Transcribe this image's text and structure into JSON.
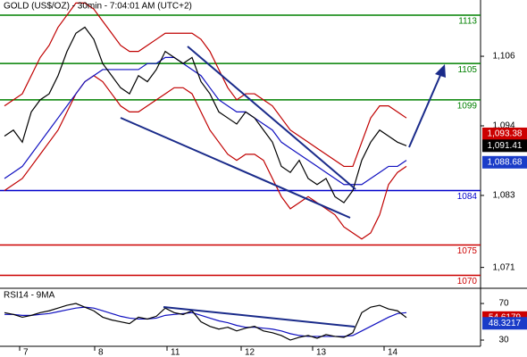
{
  "chart_data": [
    {
      "type": "line",
      "title": "GOLD (US$/OZ) - 30min - 7:04:01 AM (UTC+2)",
      "xlim": [
        -0.5,
        53.3
      ],
      "xticks": [
        {
          "value": 1.7,
          "label": "7"
        },
        {
          "value": 10.1,
          "label": "8"
        },
        {
          "value": 18.2,
          "label": "11"
        },
        {
          "value": 26.5,
          "label": "12"
        },
        {
          "value": 34.5,
          "label": "13"
        },
        {
          "value": 42.5,
          "label": "14"
        }
      ],
      "ylim": [
        1068,
        1115.5
      ],
      "yticks": [
        {
          "value": 1106.2,
          "label": "1,106"
        },
        {
          "value": 1094.7,
          "label": "1,094"
        },
        {
          "value": 1083.2,
          "label": "1,083"
        },
        {
          "value": 1071.3,
          "label": "1,071"
        }
      ],
      "series": [
        {
          "color": "#c00000",
          "values": [
            1098,
            1099,
            1100,
            1103,
            1106,
            1108,
            1111,
            1113,
            1115,
            1115,
            1114,
            1112,
            1110,
            1108,
            1107,
            1107,
            1108,
            1109,
            1110,
            1110,
            1110,
            1110,
            1109,
            1107,
            1104,
            1101,
            1099,
            1100,
            1100,
            1099,
            1098,
            1096,
            1094,
            1093,
            1092,
            1091,
            1090,
            1089,
            1088,
            1088,
            1092,
            1096,
            1098,
            1098,
            1097,
            1096
          ]
        },
        {
          "color": "#c00000",
          "values": [
            1084,
            1085,
            1086,
            1088,
            1090,
            1092,
            1094,
            1097,
            1100,
            1102,
            1103,
            1102,
            1100,
            1098,
            1097,
            1097,
            1098,
            1099,
            1100,
            1101,
            1101,
            1100,
            1097,
            1094,
            1092,
            1090,
            1089,
            1090,
            1090,
            1089,
            1086,
            1083,
            1081,
            1082,
            1083,
            1082,
            1081,
            1080,
            1078,
            1077,
            1076,
            1077,
            1080,
            1085,
            1087,
            1088
          ]
        },
        {
          "color": "#1010c0",
          "values": [
            1086,
            1087,
            1088,
            1090,
            1092,
            1094,
            1096,
            1098,
            1100,
            1102,
            1103,
            1104,
            1104,
            1104,
            1104,
            1104,
            1105,
            1105,
            1106,
            1106,
            1105,
            1104,
            1103,
            1101,
            1099,
            1098,
            1097,
            1097,
            1096,
            1095,
            1094,
            1092,
            1091,
            1090,
            1089,
            1088,
            1087,
            1086,
            1085,
            1085,
            1085,
            1086,
            1087,
            1088,
            1088,
            1089
          ]
        },
        {
          "color": "#000000",
          "values": [
            1093,
            1094,
            1092,
            1097,
            1099,
            1100,
            1103,
            1107,
            1110,
            1111,
            1109,
            1105,
            1103,
            1101,
            1100,
            1103,
            1102,
            1104,
            1107,
            1106,
            1105,
            1106,
            1102,
            1100,
            1097,
            1096,
            1095,
            1097,
            1096,
            1094,
            1092,
            1088,
            1087,
            1089,
            1086,
            1085,
            1086,
            1083,
            1082,
            1084,
            1089,
            1092,
            1094,
            1093,
            1092,
            1091.41
          ]
        }
      ],
      "levels": [
        {
          "value": 1113,
          "color": "#008000"
        },
        {
          "value": 1105,
          "color": "#008000"
        },
        {
          "value": 1099,
          "color": "#008000"
        },
        {
          "value": 1084,
          "color": "#0000cc"
        },
        {
          "value": 1075,
          "color": "#cc0000"
        },
        {
          "value": 1070,
          "color": "#cc0000"
        }
      ],
      "price_labels": [
        {
          "value": 1093.38,
          "label": "1,093.38",
          "color": "#cc0000"
        },
        {
          "value": 1091.41,
          "label": "1,091.41",
          "color": "#000000"
        },
        {
          "value": 1088.68,
          "label": "1,088.68",
          "color": "#1a3cc8"
        }
      ]
    },
    {
      "type": "line",
      "title": "RSI14 - 9MA",
      "xlim": [
        -0.5,
        53.3
      ],
      "ylim": [
        23.2,
        83.7
      ],
      "yticks": [
        70,
        30
      ],
      "series": [
        {
          "color": "#1010c0",
          "values": [
            58,
            58,
            57,
            57,
            58,
            59,
            61,
            63,
            65,
            66,
            65,
            62,
            59,
            56,
            54,
            53,
            53,
            54,
            57,
            58,
            59,
            60,
            57,
            54,
            51,
            49,
            46,
            44,
            44,
            43,
            42,
            40,
            37,
            35,
            34,
            34,
            34,
            34,
            34,
            35,
            40,
            45,
            50,
            55,
            59,
            60
          ]
        },
        {
          "color": "#000000",
          "values": [
            60,
            58,
            55,
            57,
            60,
            62,
            65,
            68,
            70,
            66,
            62,
            55,
            52,
            50,
            48,
            55,
            53,
            56,
            65,
            60,
            58,
            62,
            50,
            45,
            42,
            44,
            40,
            43,
            45,
            40,
            38,
            35,
            30,
            33,
            35,
            32,
            36,
            34,
            33,
            38,
            60,
            66,
            68,
            64,
            62,
            54.6179
          ]
        }
      ],
      "price_labels": [
        {
          "value": 54.6179,
          "label": "54.6179",
          "color": "#cc0000"
        },
        {
          "value": 48.3217,
          "label": "48.3217",
          "color": "#1a3cc8"
        }
      ]
    }
  ]
}
